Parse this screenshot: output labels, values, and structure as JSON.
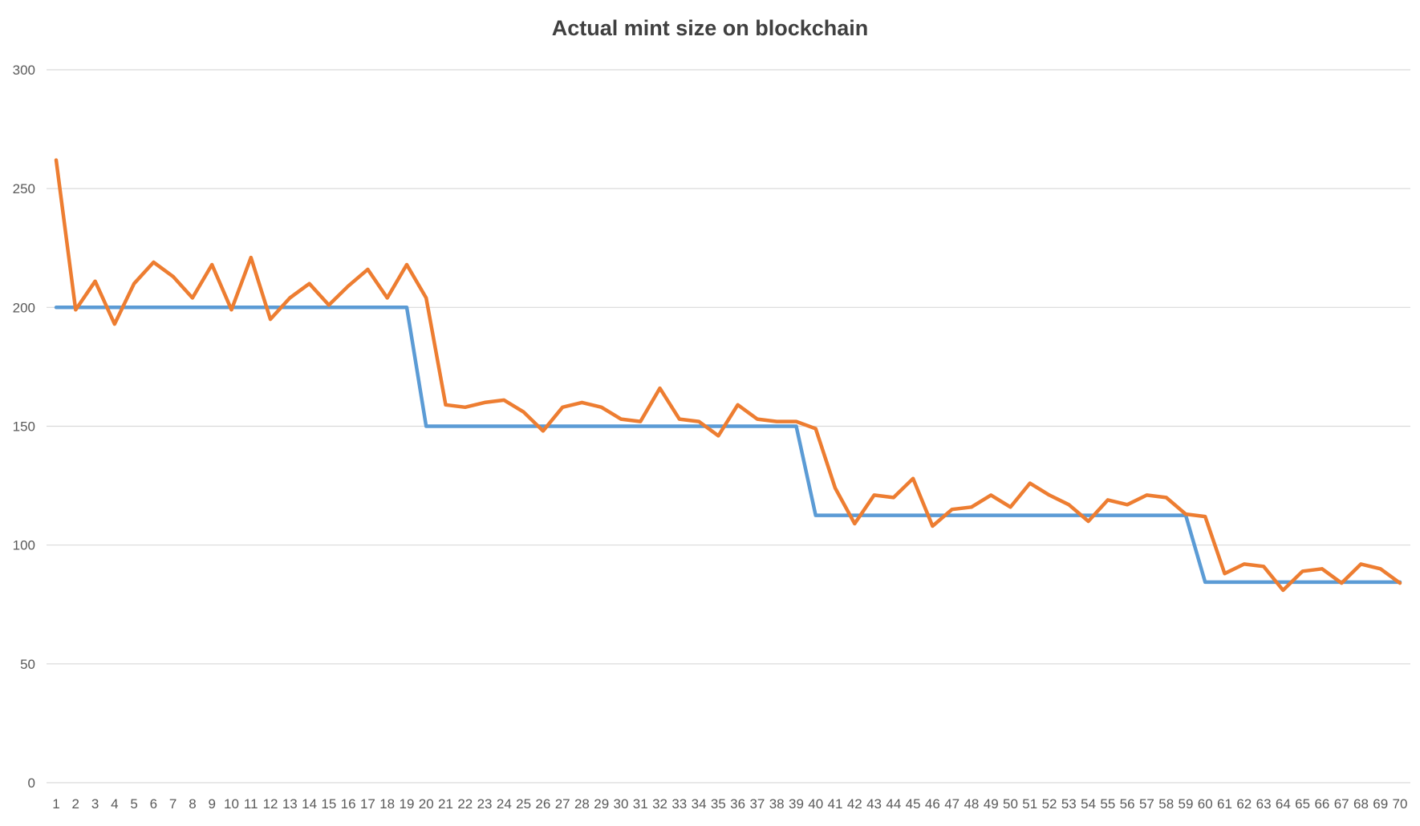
{
  "chart_data": {
    "type": "line",
    "title": "Actual mint size on blockchain",
    "xlabel": "",
    "ylabel": "",
    "ylim": [
      0,
      300
    ],
    "yticks": [
      0,
      50,
      100,
      150,
      200,
      250,
      300
    ],
    "grid": true,
    "legend": "none",
    "x": [
      1,
      2,
      3,
      4,
      5,
      6,
      7,
      8,
      9,
      10,
      11,
      12,
      13,
      14,
      15,
      16,
      17,
      18,
      19,
      20,
      21,
      22,
      23,
      24,
      25,
      26,
      27,
      28,
      29,
      30,
      31,
      32,
      33,
      34,
      35,
      36,
      37,
      38,
      39,
      40,
      41,
      42,
      43,
      44,
      45,
      46,
      47,
      48,
      49,
      50,
      51,
      52,
      53,
      54,
      55,
      56,
      57,
      58,
      59,
      60,
      61,
      62,
      63,
      64,
      65,
      66,
      67,
      68,
      69,
      70
    ],
    "series": [
      {
        "color": "#5b9bd5",
        "values": [
          200,
          200,
          200,
          200,
          200,
          200,
          200,
          200,
          200,
          200,
          200,
          200,
          200,
          200,
          200,
          200,
          200,
          200,
          200,
          150,
          150,
          150,
          150,
          150,
          150,
          150,
          150,
          150,
          150,
          150,
          150,
          150,
          150,
          150,
          150,
          150,
          150,
          150,
          150,
          112.5,
          112.5,
          112.5,
          112.5,
          112.5,
          112.5,
          112.5,
          112.5,
          112.5,
          112.5,
          112.5,
          112.5,
          112.5,
          112.5,
          112.5,
          112.5,
          112.5,
          112.5,
          112.5,
          112.5,
          84.4,
          84.4,
          84.4,
          84.4,
          84.4,
          84.4,
          84.4,
          84.4,
          84.4,
          84.4,
          84.4
        ]
      },
      {
        "color": "#ed7d31",
        "values": [
          262,
          199,
          211,
          193,
          210,
          219,
          213,
          204,
          218,
          199,
          221,
          195,
          204,
          210,
          201,
          209,
          216,
          204,
          218,
          204,
          159,
          158,
          160,
          161,
          156,
          148,
          158,
          160,
          158,
          153,
          152,
          166,
          153,
          152,
          146,
          159,
          153,
          152,
          152,
          149,
          124,
          109,
          121,
          120,
          128,
          108,
          115,
          116,
          121,
          116,
          126,
          121,
          117,
          110,
          119,
          117,
          121,
          120,
          113,
          112,
          88,
          92,
          91,
          81,
          89,
          90,
          84,
          92,
          90,
          84
        ]
      }
    ]
  }
}
